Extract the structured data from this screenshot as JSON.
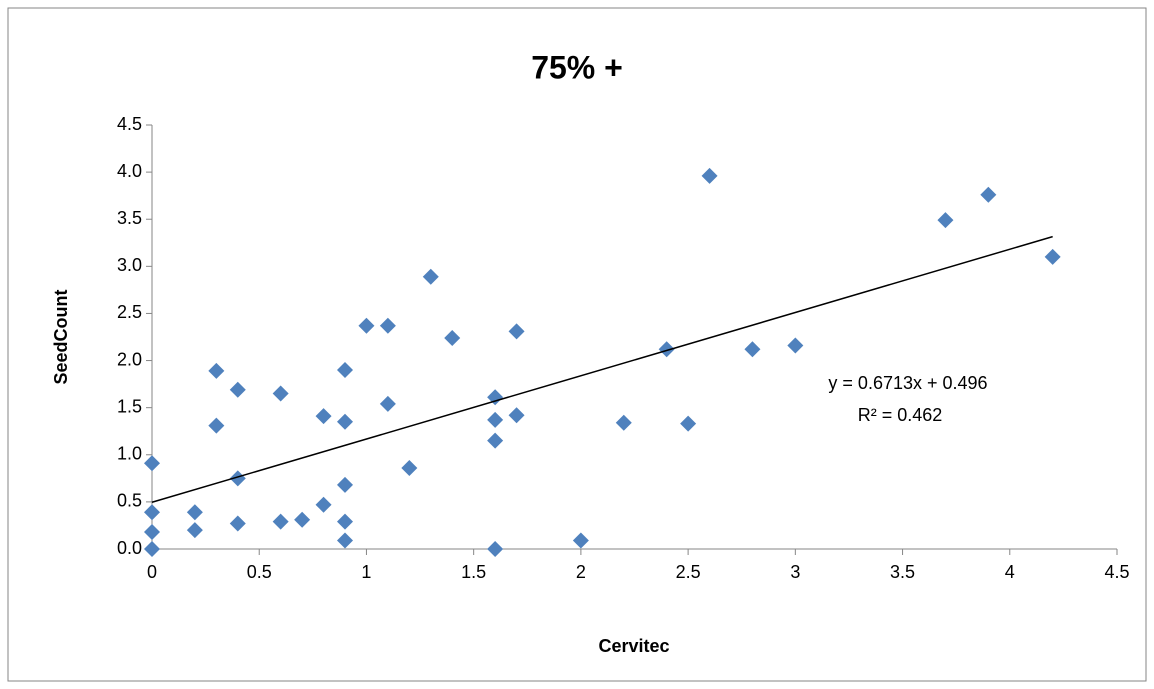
{
  "chart_data": {
    "type": "scatter",
    "title": "75% +",
    "x_label": "Cervitec",
    "y_label": "SeedCount",
    "series": [
      {
        "name": "SeedCount",
        "color": "#4f81bd",
        "x": [
          0,
          0,
          0,
          0,
          0.2,
          0.2,
          0.3,
          0.3,
          0.4,
          0.4,
          0.4,
          0.6,
          0.6,
          0.7,
          0.8,
          0.8,
          0.9,
          0.9,
          0.9,
          0.9,
          0.9,
          1.0,
          1.1,
          1.1,
          1.2,
          1.3,
          1.4,
          1.6,
          1.6,
          1.6,
          1.6,
          1.7,
          1.7,
          2.0,
          2.2,
          2.4,
          2.5,
          2.6,
          2.8,
          3.0,
          3.7,
          3.9,
          4.2
        ],
        "values": [
          0.91,
          0.39,
          0.18,
          0.0,
          0.39,
          0.2,
          1.89,
          1.31,
          1.69,
          0.75,
          0.27,
          1.65,
          0.29,
          0.31,
          1.41,
          0.47,
          1.9,
          1.35,
          0.68,
          0.29,
          0.09,
          2.37,
          2.37,
          1.54,
          0.86,
          2.89,
          2.24,
          1.61,
          1.37,
          1.15,
          0.0,
          2.31,
          1.42,
          0.09,
          1.34,
          2.12,
          1.33,
          3.96,
          2.12,
          2.16,
          3.49,
          3.76,
          3.1
        ]
      }
    ],
    "trendline": {
      "slope": 0.6713,
      "intercept": 0.496,
      "equation": "y = 0.6713x + 0.496",
      "r_squared": 0.462,
      "r_squared_label": "R² = 0.462",
      "color": "#000000"
    },
    "xlim": [
      0,
      4.5
    ],
    "xticks": [
      0,
      0.5,
      1,
      1.5,
      2,
      2.5,
      3,
      3.5,
      4,
      4.5
    ],
    "ylim": [
      0,
      4.5
    ],
    "yticks": [
      {
        "value": 0,
        "label": "0.0"
      },
      0.5,
      {
        "value": 1,
        "label": "1.0"
      },
      1.5,
      {
        "value": 2,
        "label": "2.0"
      },
      2.5,
      {
        "value": 3,
        "label": "3.0"
      },
      3.5,
      {
        "value": 4,
        "label": "4.0"
      },
      4.5
    ],
    "grid": false
  }
}
